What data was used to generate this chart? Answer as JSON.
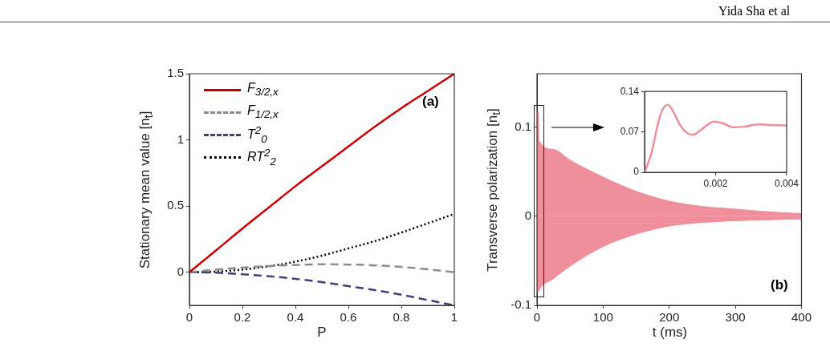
{
  "chart_data": [
    {
      "type": "line",
      "xlabel": "P",
      "ylabel": "Stationary mean value [n$_{t}$]",
      "xlim": [
        0,
        1
      ],
      "xticks": [
        0,
        0.2,
        0.4,
        0.6,
        0.8,
        1
      ],
      "ylim": [
        -0.25,
        1.5
      ],
      "yticks": [
        0,
        0.5,
        1,
        1.5
      ],
      "grid": false,
      "legend": "top left",
      "marker": "none",
      "annotations": [
        "(a)",
        "Yida Sha et al"
      ],
      "x": [
        0,
        0.1,
        0.2,
        0.3,
        0.4,
        0.5,
        0.6,
        0.7,
        0.8,
        0.9,
        1
      ],
      "series": [
        {
          "name": "F$_{3/2,x}$",
          "color": "#cc0000",
          "line_style": "solid",
          "values": [
            0,
            0.165,
            0.33,
            0.49,
            0.65,
            0.8,
            0.95,
            1.1,
            1.24,
            1.37,
            1.5
          ]
        },
        {
          "name": "F$_{1/2,x}$",
          "color": "#8c8c8c",
          "line_style": "dashed",
          "values": [
            0,
            0.02,
            0.035,
            0.047,
            0.055,
            0.06,
            0.058,
            0.052,
            0.04,
            0.022,
            0
          ]
        },
        {
          "name": "T$^{2}$$_{0}$",
          "color": "#40407a",
          "line_style": "dashed",
          "values": [
            0,
            -0.003,
            -0.015,
            -0.03,
            -0.05,
            -0.075,
            -0.105,
            -0.135,
            -0.17,
            -0.21,
            -0.25
          ]
        },
        {
          "name": "RT$^{2}$$_{2}$",
          "color": "#000000",
          "line_style": "dotted",
          "values": [
            0,
            0.005,
            0.02,
            0.045,
            0.08,
            0.125,
            0.18,
            0.235,
            0.3,
            0.37,
            0.44
          ]
        }
      ]
    },
    {
      "type": "area",
      "xlabel": "t  (ms)",
      "ylabel": "Transverse polarization [n$_{t}$]",
      "xlim": [
        0,
        400
      ],
      "xticks": [
        0,
        100,
        200,
        300,
        400
      ],
      "ylim": [
        -0.1,
        0.16
      ],
      "yticks": [
        -0.1,
        0,
        0.1
      ],
      "grid": false,
      "legend": false,
      "annotations": [
        "(b)"
      ],
      "series": [
        {
          "color": "#ee8f9b",
          "x": [
            0,
            2,
            3,
            25,
            50,
            100,
            150,
            200,
            250,
            300,
            350,
            400
          ],
          "values": [
            0.117,
            0.117,
            0.085,
            0.075,
            0.063,
            0.044,
            0.028,
            0.017,
            0.011,
            0.008,
            0.005,
            0.003
          ]
        },
        {
          "color": "#ee8f9b",
          "x": [
            0,
            2,
            3,
            25,
            50,
            100,
            150,
            200,
            250,
            300,
            350,
            400
          ],
          "values": [
            -0.085,
            -0.085,
            -0.083,
            -0.07,
            -0.056,
            -0.034,
            -0.02,
            -0.011,
            -0.007,
            -0.005,
            -0.004,
            -0.003
          ]
        }
      ]
    },
    {
      "type": "line",
      "xlim": [
        0,
        0.004
      ],
      "xticks": [
        0.002,
        0.004
      ],
      "ylim": [
        0,
        0.14
      ],
      "yticks": [
        0,
        0.07,
        0.14
      ],
      "grid": false,
      "legend": false,
      "marker": "none",
      "x": [
        0,
        0.0002,
        0.0004,
        0.0005,
        0.00066,
        0.0008,
        0.001,
        0.0012,
        0.00136,
        0.0016,
        0.00195,
        0.0022,
        0.0025,
        0.0028,
        0.0032,
        0.0036,
        0.004
      ],
      "series": [
        {
          "color": "#ee8f9b",
          "line_style": "solid",
          "values": [
            0,
            0.035,
            0.09,
            0.108,
            0.117,
            0.106,
            0.082,
            0.068,
            0.065,
            0.074,
            0.088,
            0.085,
            0.078,
            0.079,
            0.083,
            0.082,
            0.081
          ]
        }
      ]
    }
  ]
}
